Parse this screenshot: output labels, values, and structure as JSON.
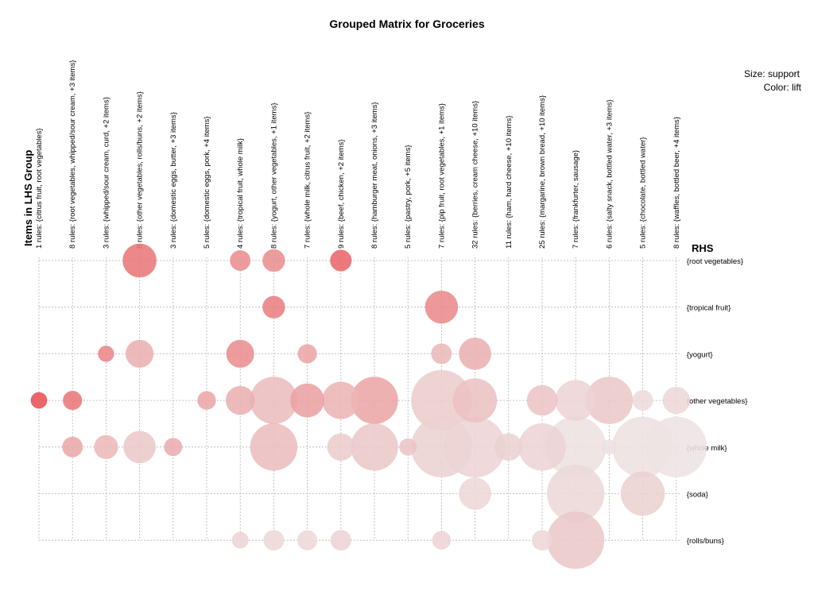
{
  "chart_data": {
    "type": "scatter",
    "title": "Grouped Matrix for Groceries",
    "xlabel": "Items in LHS Group",
    "ylabel": "RHS",
    "size_legend": "Size: support",
    "color_legend": "Color: lift",
    "grid": true,
    "categories": [
      "1 rules: {citrus fruit, root vegetables}",
      "8 rules: {root vegetables, whipped/sour cream, +3 items}",
      "3 rules: {whipped/sour cream, curd, +2 items}",
      "8 rules: {other vegetables, rolls/buns, +2 items}",
      "3 rules: {domestic eggs, butter, +3 items}",
      "5 rules: {domestic eggs, pork, +4 items}",
      "4 rules: {tropical fruit, whole milk}",
      "8 rules: {yogurt, other vegetables, +1 items}",
      "7 rules: {whole milk, citrus fruit, +2 items}",
      "9 rules: {beef, chicken, +2 items}",
      "8 rules: {hamburger meat, onions, +3 items}",
      "5 rules: {pastry, pork, +5 items}",
      "7 rules: {pip fruit, root vegetables, +1 items}",
      "32 rules: {berries, cream cheese, +10 items}",
      "11 rules: {ham, hard cheese, +10 items}",
      "25 rules: {margarine, brown bread, +10 items}",
      "7 rules: {frankfurter, sausage}",
      "6 rules: {salty snack, bottled water, +3 items}",
      "5 rules: {chocolate, bottled water}",
      "8 rules: {waffles, bottled beer, +4 items}"
    ],
    "rhs_items": [
      "{root vegetables}",
      "{tropical fruit}",
      "{yogurt}",
      "{other vegetables}",
      "{whole milk}",
      "{soda}",
      "{rolls/buns}"
    ],
    "color_low": "#ede4e4",
    "color_high": "#e8484c",
    "points": [
      {
        "lhs": 3,
        "rhs": 0,
        "support": 0.6,
        "lift": 0.7
      },
      {
        "lhs": 6,
        "rhs": 0,
        "support": 0.2,
        "lift": 0.55
      },
      {
        "lhs": 7,
        "rhs": 0,
        "support": 0.26,
        "lift": 0.55
      },
      {
        "lhs": 9,
        "rhs": 0,
        "support": 0.23,
        "lift": 0.8
      },
      {
        "lhs": 7,
        "rhs": 1,
        "support": 0.26,
        "lift": 0.65
      },
      {
        "lhs": 12,
        "rhs": 1,
        "support": 0.57,
        "lift": 0.58
      },
      {
        "lhs": 2,
        "rhs": 2,
        "support": 0.07,
        "lift": 0.6
      },
      {
        "lhs": 3,
        "rhs": 2,
        "support": 0.42,
        "lift": 0.33
      },
      {
        "lhs": 6,
        "rhs": 2,
        "support": 0.42,
        "lift": 0.55
      },
      {
        "lhs": 8,
        "rhs": 2,
        "support": 0.16,
        "lift": 0.4
      },
      {
        "lhs": 12,
        "rhs": 2,
        "support": 0.2,
        "lift": 0.28
      },
      {
        "lhs": 13,
        "rhs": 2,
        "support": 0.55,
        "lift": 0.33
      },
      {
        "lhs": 0,
        "rhs": 3,
        "support": 0.08,
        "lift": 0.95
      },
      {
        "lhs": 1,
        "rhs": 3,
        "support": 0.16,
        "lift": 0.7
      },
      {
        "lhs": 5,
        "rhs": 3,
        "support": 0.14,
        "lift": 0.4
      },
      {
        "lhs": 6,
        "rhs": 3,
        "support": 0.45,
        "lift": 0.33
      },
      {
        "lhs": 7,
        "rhs": 3,
        "support": 1.0,
        "lift": 0.25
      },
      {
        "lhs": 8,
        "rhs": 3,
        "support": 0.6,
        "lift": 0.42
      },
      {
        "lhs": 9,
        "rhs": 3,
        "support": 0.7,
        "lift": 0.3
      },
      {
        "lhs": 10,
        "rhs": 3,
        "support": 1.0,
        "lift": 0.4
      },
      {
        "lhs": 12,
        "rhs": 3,
        "support": 1.4,
        "lift": 0.15
      },
      {
        "lhs": 13,
        "rhs": 3,
        "support": 0.9,
        "lift": 0.22
      },
      {
        "lhs": 15,
        "rhs": 3,
        "support": 0.5,
        "lift": 0.2
      },
      {
        "lhs": 16,
        "rhs": 3,
        "support": 0.8,
        "lift": 0.1
      },
      {
        "lhs": 17,
        "rhs": 3,
        "support": 1.0,
        "lift": 0.18
      },
      {
        "lhs": 18,
        "rhs": 3,
        "support": 0.2,
        "lift": 0.05
      },
      {
        "lhs": 19,
        "rhs": 3,
        "support": 0.4,
        "lift": 0.08
      },
      {
        "lhs": 1,
        "rhs": 4,
        "support": 0.2,
        "lift": 0.38
      },
      {
        "lhs": 2,
        "rhs": 4,
        "support": 0.3,
        "lift": 0.28
      },
      {
        "lhs": 3,
        "rhs": 4,
        "support": 0.55,
        "lift": 0.18
      },
      {
        "lhs": 4,
        "rhs": 4,
        "support": 0.13,
        "lift": 0.35
      },
      {
        "lhs": 7,
        "rhs": 4,
        "support": 1.0,
        "lift": 0.25
      },
      {
        "lhs": 9,
        "rhs": 4,
        "support": 0.4,
        "lift": 0.15
      },
      {
        "lhs": 10,
        "rhs": 4,
        "support": 1.0,
        "lift": 0.18
      },
      {
        "lhs": 11,
        "rhs": 4,
        "support": 0.1,
        "lift": 0.2
      },
      {
        "lhs": 12,
        "rhs": 4,
        "support": 1.4,
        "lift": 0.12
      },
      {
        "lhs": 13,
        "rhs": 4,
        "support": 1.4,
        "lift": 0.1
      },
      {
        "lhs": 14,
        "rhs": 4,
        "support": 0.4,
        "lift": 0.12
      },
      {
        "lhs": 15,
        "rhs": 4,
        "support": 1.0,
        "lift": 0.1
      },
      {
        "lhs": 16,
        "rhs": 4,
        "support": 1.4,
        "lift": 0.02
      },
      {
        "lhs": 17,
        "rhs": 4,
        "support": 0.02,
        "lift": 0.02
      },
      {
        "lhs": 18,
        "rhs": 4,
        "support": 1.4,
        "lift": 0.02
      },
      {
        "lhs": 19,
        "rhs": 4,
        "support": 1.4,
        "lift": 0.0
      },
      {
        "lhs": 13,
        "rhs": 5,
        "support": 0.55,
        "lift": 0.08
      },
      {
        "lhs": 16,
        "rhs": 5,
        "support": 1.3,
        "lift": 0.08
      },
      {
        "lhs": 18,
        "rhs": 5,
        "support": 0.9,
        "lift": 0.12
      },
      {
        "lhs": 6,
        "rhs": 6,
        "support": 0.08,
        "lift": 0.1
      },
      {
        "lhs": 7,
        "rhs": 6,
        "support": 0.2,
        "lift": 0.08
      },
      {
        "lhs": 8,
        "rhs": 6,
        "support": 0.18,
        "lift": 0.08
      },
      {
        "lhs": 9,
        "rhs": 6,
        "support": 0.2,
        "lift": 0.1
      },
      {
        "lhs": 12,
        "rhs": 6,
        "support": 0.14,
        "lift": 0.1
      },
      {
        "lhs": 15,
        "rhs": 6,
        "support": 0.2,
        "lift": 0.08
      },
      {
        "lhs": 16,
        "rhs": 6,
        "support": 1.3,
        "lift": 0.18
      }
    ]
  }
}
